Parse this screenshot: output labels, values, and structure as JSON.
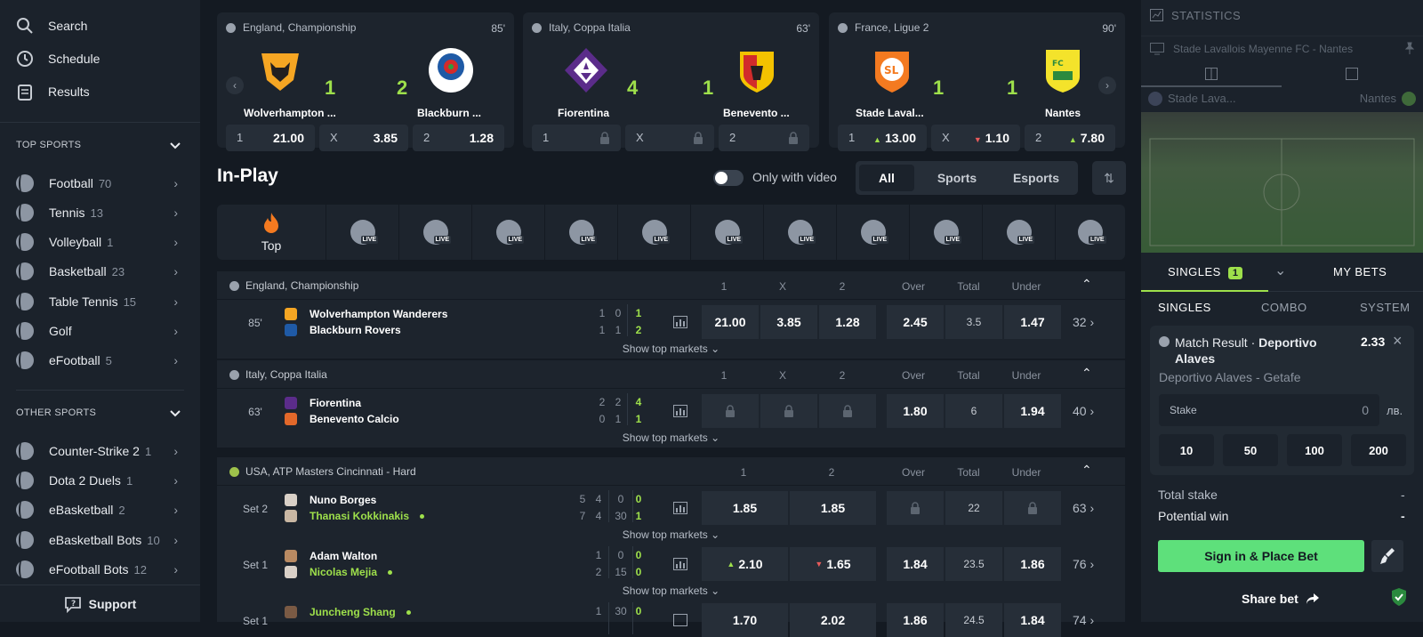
{
  "sidebar": {
    "nav": [
      {
        "label": "Search",
        "icon": "search-icon"
      },
      {
        "label": "Schedule",
        "icon": "clock-icon"
      },
      {
        "label": "Results",
        "icon": "clipboard-icon"
      }
    ],
    "top_sports_title": "TOP SPORTS",
    "top_sports": [
      {
        "label": "Football",
        "count": "70"
      },
      {
        "label": "Tennis",
        "count": "13"
      },
      {
        "label": "Volleyball",
        "count": "1"
      },
      {
        "label": "Basketball",
        "count": "23"
      },
      {
        "label": "Table Tennis",
        "count": "15"
      },
      {
        "label": "Golf",
        "count": ""
      },
      {
        "label": "eFootball",
        "count": "5"
      }
    ],
    "other_sports_title": "OTHER SPORTS",
    "other_sports": [
      {
        "label": "Counter-Strike 2",
        "count": "1"
      },
      {
        "label": "Dota 2 Duels",
        "count": "1"
      },
      {
        "label": "eBasketball",
        "count": "2"
      },
      {
        "label": "eBasketball Bots",
        "count": "10"
      },
      {
        "label": "eFootball Bots",
        "count": "12"
      }
    ],
    "support": "Support"
  },
  "featured": [
    {
      "league": "England, Championship",
      "minute": "85'",
      "home": "Wolverhampton ...",
      "away": "Blackburn ...",
      "home_score": "1",
      "away_score": "2",
      "odds": [
        {
          "l": "1",
          "v": "21.00"
        },
        {
          "l": "X",
          "v": "3.85"
        },
        {
          "l": "2",
          "v": "1.28"
        }
      ]
    },
    {
      "league": "Italy, Coppa Italia",
      "minute": "63'",
      "home": "Fiorentina",
      "away": "Benevento ...",
      "home_score": "4",
      "away_score": "1",
      "odds": [
        {
          "l": "1",
          "v": ""
        },
        {
          "l": "X",
          "v": ""
        },
        {
          "l": "2",
          "v": ""
        }
      ]
    },
    {
      "league": "France, Ligue 2",
      "minute": "90'",
      "home": "Stade Laval...",
      "away": "Nantes",
      "home_score": "1",
      "away_score": "1",
      "odds": [
        {
          "l": "1",
          "v": "13.00"
        },
        {
          "l": "X",
          "v": "1.10"
        },
        {
          "l": "2",
          "v": "7.80"
        }
      ]
    }
  ],
  "inplay": {
    "title": "In-Play",
    "video_label": "Only with video",
    "seg": [
      "All",
      "Sports",
      "Esports"
    ],
    "top_label": "Top",
    "live_badge": "LIVE"
  },
  "groups": {
    "g1": {
      "league": "England, Championship",
      "cols": [
        "1",
        "X",
        "2",
        "Over",
        "Total",
        "Under"
      ],
      "time": "85'",
      "home": "Wolverhampton Wanderers",
      "away": "Blackburn Rovers",
      "h": [
        "1",
        "0",
        "1"
      ],
      "a": [
        "1",
        "1",
        "2"
      ],
      "odds": [
        "21.00",
        "3.85",
        "1.28",
        "2.45",
        "3.5",
        "1.47"
      ],
      "more": "32",
      "show": "Show top markets"
    },
    "g2": {
      "league": "Italy, Coppa Italia",
      "cols": [
        "1",
        "X",
        "2",
        "Over",
        "Total",
        "Under"
      ],
      "time": "63'",
      "home": "Fiorentina",
      "away": "Benevento Calcio",
      "h": [
        "2",
        "2",
        "4"
      ],
      "a": [
        "0",
        "1",
        "1"
      ],
      "odds": [
        "1.80",
        "6",
        "1.94"
      ],
      "more": "40",
      "show": "Show top markets"
    },
    "g3": {
      "league": "USA, ATP Masters Cincinnati - Hard",
      "cols": [
        "1",
        "2",
        "Over",
        "Total",
        "Under"
      ],
      "r1": {
        "time": "Set 2",
        "home": "Nuno Borges",
        "away": "Thanasi Kokkinakis",
        "h": [
          "5",
          "4",
          "0",
          "0"
        ],
        "a": [
          "7",
          "4",
          "30",
          "1"
        ],
        "odds": [
          "1.85",
          "1.85",
          "22"
        ],
        "more": "63"
      },
      "r2": {
        "time": "Set 1",
        "home": "Adam Walton",
        "away": "Nicolas Mejia",
        "h": [
          "1",
          "0",
          "0"
        ],
        "a": [
          "2",
          "15",
          "0"
        ],
        "odds": [
          "2.10",
          "1.65",
          "1.84",
          "23.5",
          "1.86"
        ],
        "more": "76"
      },
      "r3": {
        "time": "Set 1",
        "home": "Juncheng Shang",
        "h": [
          "1",
          "30",
          "0"
        ],
        "odds": [
          "1.70",
          "2.02",
          "1.86",
          "24.5",
          "1.84"
        ],
        "more": "74"
      },
      "show": "Show top markets"
    }
  },
  "right": {
    "stats_title": "STATISTICS",
    "match": "Stade Lavallois Mayenne FC - Nantes",
    "home_short": "Stade Lava...",
    "away_short": "Nantes",
    "tabs": {
      "singles": "SINGLES",
      "count": "1",
      "mybets": "MY BETS"
    },
    "subtabs": [
      "SINGLES",
      "COMBO",
      "SYSTEM"
    ],
    "bet": {
      "market": "Match Result",
      "pick": "Deportivo Alaves",
      "odd": "2.33",
      "event": "Deportivo Alaves - Getafe",
      "stake_label": "Stake",
      "stake_value": "0",
      "currency": "лв.",
      "quick": [
        "10",
        "50",
        "100",
        "200"
      ]
    },
    "total_stake_label": "Total stake",
    "total_stake": "-",
    "potential_win_label": "Potential win",
    "potential_win": "-",
    "place_bet": "Sign in & Place Bet",
    "share": "Share bet"
  },
  "colors": {
    "accent": "#9ee04b",
    "cta": "#5ee07b",
    "bg": "#141a22",
    "panel": "#1d242d"
  }
}
